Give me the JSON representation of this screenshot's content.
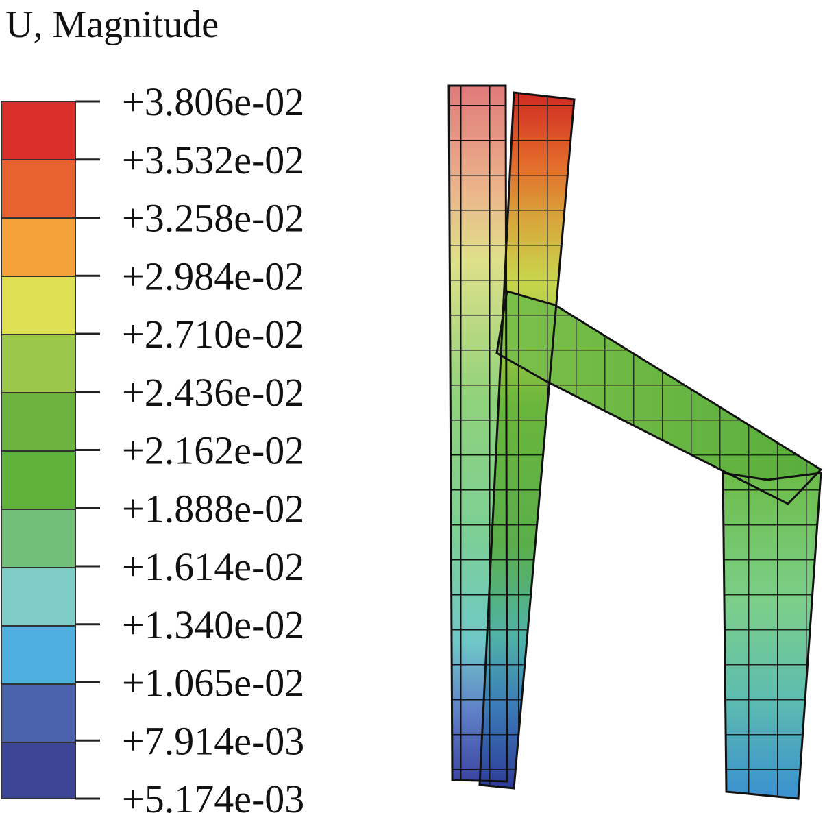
{
  "title": "U, Magnitude",
  "legend": {
    "labels": [
      "+3.806e-02",
      "+3.532e-02",
      "+3.258e-02",
      "+2.984e-02",
      "+2.710e-02",
      "+2.436e-02",
      "+2.162e-02",
      "+1.888e-02",
      "+1.614e-02",
      "+1.340e-02",
      "+1.065e-02",
      "+7.914e-03",
      "+5.174e-03"
    ]
  }
}
